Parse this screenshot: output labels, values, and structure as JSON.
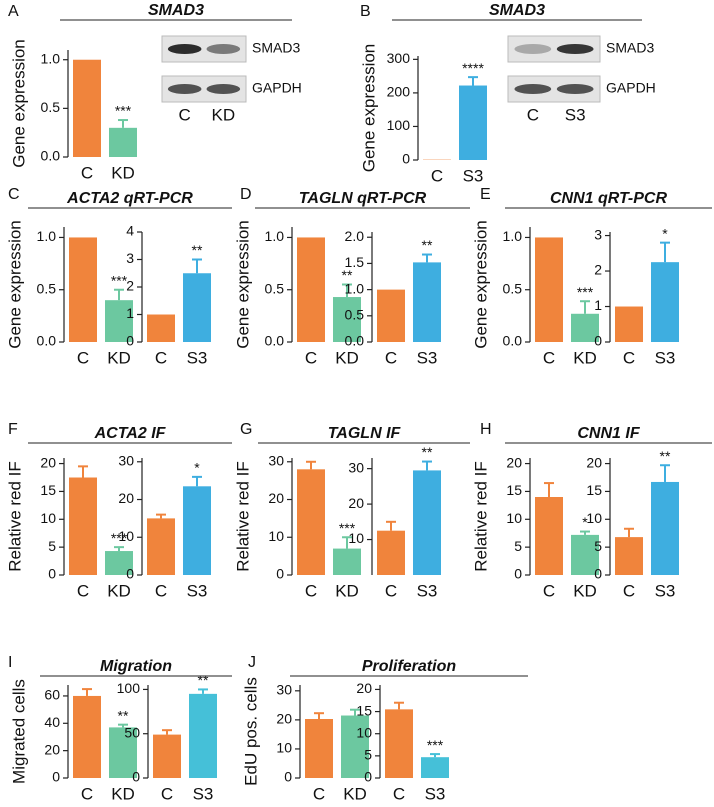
{
  "chart_data": [
    {
      "type": "bar",
      "ylabel": "Gene expression",
      "categories": [
        "C",
        "KD"
      ],
      "values": [
        1.0,
        0.3
      ],
      "errors": [
        0,
        0.08
      ],
      "colors": [
        "#f0843c",
        "#6cc8a0"
      ],
      "ylim": [
        0,
        1.1
      ],
      "yticks": [
        {
          "value": 0,
          "label": "0.0"
        },
        {
          "value": 0.5,
          "label": "0.5"
        },
        {
          "value": 1,
          "label": "1.0"
        }
      ],
      "annotation": "***"
    },
    {
      "type": "bar",
      "ylabel": "Gene expression",
      "categories": [
        "C",
        "S3"
      ],
      "values": [
        1,
        222
      ],
      "errors": [
        0,
        25
      ],
      "colors": [
        "#f0843c",
        "#3eaee0"
      ],
      "ylim": [
        0,
        310
      ],
      "yticks": [
        0,
        100,
        200,
        300
      ],
      "annotation": "****"
    },
    {
      "type": "bar",
      "ylabel": "Gene expression",
      "categories": [
        "C",
        "KD"
      ],
      "values": [
        1.0,
        0.4
      ],
      "errors": [
        0,
        0.1
      ],
      "colors": [
        "#f0843c",
        "#6cc8a0"
      ],
      "ylim": [
        0,
        1.1
      ],
      "yticks": [
        {
          "value": 0,
          "label": "0.0"
        },
        {
          "value": 0.5,
          "label": "0.5"
        },
        {
          "value": 1,
          "label": "1.0"
        }
      ],
      "annotation": "***"
    },
    {
      "type": "bar",
      "categories": [
        "C",
        "S3"
      ],
      "values": [
        1,
        2.5
      ],
      "errors": [
        0,
        0.5
      ],
      "colors": [
        "#f0843c",
        "#3eaee0"
      ],
      "ylim": [
        0,
        4
      ],
      "yticks": [
        0,
        1,
        2,
        3,
        4
      ],
      "annotation": "**"
    },
    {
      "type": "bar",
      "ylabel": "Gene expression",
      "categories": [
        "C",
        "KD"
      ],
      "values": [
        1.0,
        0.43
      ],
      "errors": [
        0,
        0.12
      ],
      "colors": [
        "#f0843c",
        "#6cc8a0"
      ],
      "ylim": [
        0,
        1.1
      ],
      "yticks": [
        {
          "value": 0,
          "label": "0.0"
        },
        {
          "value": 0.5,
          "label": "0.5"
        },
        {
          "value": 1,
          "label": "1.0"
        }
      ],
      "annotation": "**"
    },
    {
      "type": "bar",
      "categories": [
        "C",
        "S3"
      ],
      "values": [
        1.0,
        1.52
      ],
      "errors": [
        0,
        0.15
      ],
      "colors": [
        "#f0843c",
        "#3eaee0"
      ],
      "ylim": [
        0,
        2.1
      ],
      "yticks": [
        {
          "value": 0,
          "label": "0.0"
        },
        {
          "value": 0.5,
          "label": "0.5"
        },
        {
          "value": 1,
          "label": "1.0"
        },
        {
          "value": 1.5,
          "label": "1.5"
        },
        {
          "value": 2,
          "label": "2.0"
        }
      ],
      "annotation": "**"
    },
    {
      "type": "bar",
      "ylabel": "Gene expression",
      "categories": [
        "C",
        "KD"
      ],
      "values": [
        1.0,
        0.27
      ],
      "errors": [
        0,
        0.12
      ],
      "colors": [
        "#f0843c",
        "#6cc8a0"
      ],
      "ylim": [
        0,
        1.1
      ],
      "yticks": [
        {
          "value": 0,
          "label": "0.0"
        },
        {
          "value": 0.5,
          "label": "0.5"
        },
        {
          "value": 1,
          "label": "1.0"
        }
      ],
      "annotation": "***"
    },
    {
      "type": "bar",
      "categories": [
        "C",
        "S3"
      ],
      "values": [
        1,
        2.25
      ],
      "errors": [
        0,
        0.55
      ],
      "colors": [
        "#f0843c",
        "#3eaee0"
      ],
      "ylim": [
        0,
        3.1
      ],
      "yticks": [
        0,
        1,
        2,
        3
      ],
      "annotation": "*"
    },
    {
      "type": "bar",
      "ylabel": "Relative red IF",
      "categories": [
        "C",
        "KD"
      ],
      "values": [
        17.5,
        4.3
      ],
      "errors": [
        2,
        0.7
      ],
      "colors": [
        "#f0843c",
        "#6cc8a0"
      ],
      "ylim": [
        0,
        21
      ],
      "yticks": [
        0,
        5,
        10,
        15,
        20
      ],
      "annotation": "***"
    },
    {
      "type": "bar",
      "categories": [
        "C",
        "S3"
      ],
      "values": [
        15,
        23.5
      ],
      "errors": [
        1,
        2.5
      ],
      "colors": [
        "#f0843c",
        "#3eaee0"
      ],
      "ylim": [
        0,
        31
      ],
      "yticks": [
        0,
        10,
        20,
        30
      ],
      "annotation": "*"
    },
    {
      "type": "bar",
      "ylabel": "Relative red IF",
      "categories": [
        "C",
        "KD"
      ],
      "values": [
        28,
        7
      ],
      "errors": [
        2,
        3
      ],
      "colors": [
        "#f0843c",
        "#6cc8a0"
      ],
      "ylim": [
        0,
        31
      ],
      "yticks": [
        0,
        10,
        20,
        30
      ],
      "annotation": "***"
    },
    {
      "type": "bar",
      "categories": [
        "C",
        "S3"
      ],
      "values": [
        12.5,
        29.5
      ],
      "errors": [
        2.5,
        2.5
      ],
      "colors": [
        "#f0843c",
        "#3eaee0"
      ],
      "ylim": [
        0,
        33
      ],
      "yticks": [
        10,
        20,
        30
      ],
      "annotation": "**"
    },
    {
      "type": "bar",
      "ylabel": "Relative red IF",
      "categories": [
        "C",
        "KD"
      ],
      "values": [
        14,
        7.2
      ],
      "errors": [
        2.5,
        0.6
      ],
      "colors": [
        "#f0843c",
        "#6cc8a0"
      ],
      "ylim": [
        0,
        21
      ],
      "yticks": [
        0,
        5,
        10,
        15,
        20
      ],
      "annotation": "*"
    },
    {
      "type": "bar",
      "categories": [
        "C",
        "S3"
      ],
      "values": [
        6.8,
        16.7
      ],
      "errors": [
        1.5,
        3
      ],
      "colors": [
        "#f0843c",
        "#3eaee0"
      ],
      "ylim": [
        0,
        21
      ],
      "yticks": [
        0,
        5,
        10,
        15,
        20
      ],
      "annotation": "**"
    },
    {
      "type": "bar",
      "ylabel": "Migrated cells",
      "categories": [
        "C",
        "KD"
      ],
      "values": [
        60,
        37
      ],
      "errors": [
        5,
        2
      ],
      "colors": [
        "#f0843c",
        "#6cc8a0"
      ],
      "ylim": [
        0,
        68
      ],
      "yticks": [
        0,
        20,
        40,
        60
      ],
      "annotation": "**"
    },
    {
      "type": "bar",
      "categories": [
        "C",
        "S3"
      ],
      "values": [
        49,
        95
      ],
      "errors": [
        5,
        5
      ],
      "colors": [
        "#f0843c",
        "#45c0d8"
      ],
      "ylim": [
        0,
        105
      ],
      "yticks": [
        0,
        50,
        100
      ],
      "annotation": "**"
    },
    {
      "type": "bar",
      "ylabel": "EdU pos. cells",
      "categories": [
        "C",
        "KD"
      ],
      "values": [
        20.3,
        21.5
      ],
      "errors": [
        2,
        2
      ],
      "colors": [
        "#f0843c",
        "#6cc8a0"
      ],
      "ylim": [
        0,
        32
      ],
      "yticks": [
        0,
        10,
        20,
        30
      ]
    },
    {
      "type": "bar",
      "categories": [
        "C",
        "S3"
      ],
      "values": [
        15.5,
        4.7
      ],
      "errors": [
        1.5,
        0.7
      ],
      "colors": [
        "#f0843c",
        "#45c0d8"
      ],
      "ylim": [
        0,
        21
      ],
      "yticks": [
        0,
        5,
        10,
        15,
        20
      ],
      "annotation": "***"
    }
  ],
  "panels": [
    {
      "letter": "A",
      "title": "SMAD3",
      "blot": {
        "rows": [
          "SMAD3",
          "GAPDH"
        ],
        "lanes": [
          "C",
          "KD"
        ]
      }
    },
    {
      "letter": "B",
      "title": "SMAD3",
      "blot": {
        "rows": [
          "SMAD3",
          "GAPDH"
        ],
        "lanes": [
          "C",
          "S3"
        ]
      }
    },
    {
      "letter": "C",
      "title": "ACTA2 qRT-PCR"
    },
    {
      "letter": "D",
      "title": "TAGLN qRT-PCR"
    },
    {
      "letter": "E",
      "title": "CNN1 qRT-PCR"
    },
    {
      "letter": "F",
      "title": "ACTA2 IF"
    },
    {
      "letter": "G",
      "title": "TAGLN IF"
    },
    {
      "letter": "H",
      "title": "CNN1 IF"
    },
    {
      "letter": "I",
      "title": "Migration"
    },
    {
      "letter": "J",
      "title": "Proliferation"
    }
  ]
}
